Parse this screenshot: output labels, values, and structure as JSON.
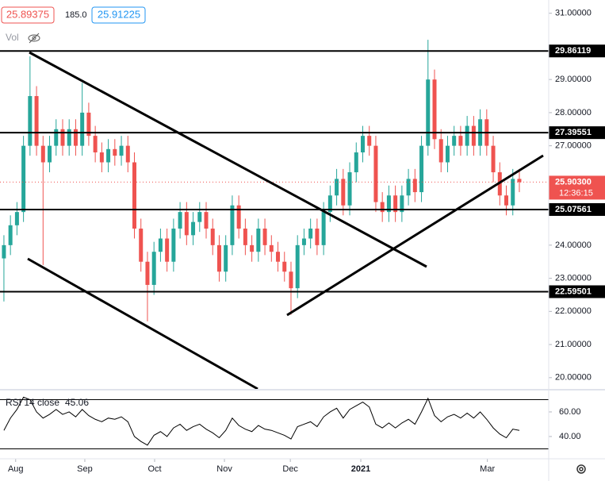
{
  "chart_data": {
    "type": "candlestick",
    "header": {
      "bid": "25.89375",
      "spread": "185.0",
      "ask": "25.91225",
      "volume_label": "Vol",
      "countdown": "12:36:15"
    },
    "xlim": [
      -0.6,
      83.5
    ],
    "xticks": [
      {
        "value": 1.8,
        "label": "Aug"
      },
      {
        "value": 12.4,
        "label": "Sep"
      },
      {
        "value": 23.1,
        "label": "Oct"
      },
      {
        "value": 33.8,
        "label": "Nov"
      },
      {
        "value": 43.9,
        "label": "Dec"
      },
      {
        "value": 54.7,
        "label": "2021"
      },
      {
        "value": 74.1,
        "label": "Mar"
      }
    ],
    "ylim": [
      19.66,
      31.4
    ],
    "yticks": [
      {
        "value": 31,
        "label": "31.00000"
      },
      {
        "value": 29,
        "label": "29.00000"
      },
      {
        "value": 28,
        "label": "28.00000"
      },
      {
        "value": 27,
        "label": "27.00000"
      },
      {
        "value": 24,
        "label": "24.00000"
      },
      {
        "value": 23,
        "label": "23.00000"
      },
      {
        "value": 22,
        "label": "22.00000"
      },
      {
        "value": 21,
        "label": "21.00000"
      },
      {
        "value": 20,
        "label": "20.00000"
      }
    ],
    "up_color": "#26a69a",
    "down_color": "#ef5350",
    "open": [
      23.6,
      24,
      24.6,
      25,
      27,
      28.5,
      27,
      26.5,
      27,
      27.5,
      27,
      27.5,
      27,
      28,
      27.3,
      26.8,
      26.5,
      26.9,
      26.7,
      27,
      26.5,
      24.5,
      23.5,
      22.8,
      23.8,
      24.2,
      23.5,
      24.5,
      25,
      24.3,
      24.7,
      25,
      24.5,
      24,
      23.2,
      24,
      25.2,
      24.5,
      24,
      23.8,
      24.5,
      24,
      23.8,
      23.5,
      23.2,
      22.7,
      24,
      24.2,
      24.5,
      24,
      25,
      25.5,
      26,
      25.2,
      26.2,
      26.8,
      27.3,
      27,
      25.3,
      25,
      25.5,
      25,
      25.5,
      26,
      25.6,
      27,
      29,
      27.2,
      26.5,
      27,
      27.3,
      27,
      27.6,
      27,
      27.8,
      27,
      26.2,
      25.5,
      25.2,
      26
    ],
    "high": [
      24.3,
      24.9,
      25.3,
      27.3,
      29.7,
      28.8,
      27.3,
      27.3,
      27.8,
      27.8,
      27.8,
      27.8,
      28.9,
      28.3,
      27.6,
      27.1,
      27.2,
      27.2,
      27.3,
      27.3,
      26.8,
      24.8,
      23.8,
      24.1,
      24.5,
      24.5,
      24.8,
      25.3,
      25.3,
      25,
      25.3,
      25.3,
      24.8,
      24.3,
      24.3,
      25.5,
      25.5,
      24.8,
      24.3,
      24.8,
      24.8,
      24.3,
      24.1,
      23.8,
      23.5,
      24.3,
      24.5,
      24.8,
      24.8,
      25.3,
      25.8,
      26.3,
      26.3,
      26.5,
      27.1,
      27.6,
      27.6,
      27.3,
      25.6,
      25.8,
      25.8,
      25.8,
      26.3,
      26.3,
      27.3,
      30.2,
      29.3,
      27.5,
      27.3,
      27.6,
      27.6,
      27.9,
      27.9,
      28.1,
      28.1,
      27.3,
      26.5,
      25.8,
      26.3,
      26.3
    ],
    "low": [
      22.3,
      23.7,
      24.3,
      24.7,
      26.7,
      26.7,
      23.4,
      26.2,
      26.7,
      26.7,
      26.7,
      26.7,
      26.7,
      27,
      26.5,
      26.2,
      26.2,
      26.4,
      26.4,
      26.2,
      24.2,
      23.2,
      21.7,
      22.5,
      23.5,
      23.2,
      23.2,
      24.2,
      24,
      24,
      24.4,
      24.2,
      23.7,
      22.9,
      22.9,
      23.7,
      24.2,
      23.7,
      23.5,
      23.5,
      23.7,
      23.5,
      23.2,
      22.9,
      21.9,
      22.4,
      23.7,
      23.9,
      23.7,
      23.7,
      24.7,
      25.2,
      24.9,
      24.9,
      25.9,
      26.5,
      26.7,
      25,
      24.7,
      24.7,
      24.7,
      24.7,
      25.2,
      25.3,
      25.3,
      26.7,
      26.9,
      26.2,
      26.2,
      26.7,
      26.7,
      26.7,
      26.7,
      26.7,
      26.7,
      25.9,
      25.2,
      24.9,
      24.9,
      25.6
    ],
    "close": [
      24,
      24.6,
      25,
      27,
      28.5,
      27,
      26.5,
      27,
      27.5,
      27,
      27.5,
      27,
      28,
      27.3,
      26.8,
      26.5,
      26.9,
      26.7,
      27,
      26.5,
      24.5,
      23.5,
      22.8,
      23.8,
      24.2,
      23.5,
      24.5,
      25,
      24.3,
      24.7,
      25,
      24.5,
      24,
      23.2,
      24,
      25.2,
      24.5,
      24,
      23.8,
      24.5,
      24,
      23.8,
      23.5,
      23.2,
      22.7,
      24,
      24.2,
      24.5,
      24,
      25,
      25.5,
      26,
      25.2,
      26.2,
      26.8,
      27.3,
      27,
      25.3,
      25,
      25.5,
      25,
      25.5,
      26,
      25.6,
      27,
      29,
      27.2,
      26.5,
      27,
      27.3,
      27,
      27.6,
      27,
      27.8,
      27,
      26.2,
      25.5,
      25.2,
      26,
      25.9
    ],
    "levels": [
      29.86119,
      27.39551,
      25.07561,
      22.59501
    ],
    "last_price": {
      "value": 25.903,
      "label": "25.90300"
    },
    "rsi": {
      "title": "RSI 14 close",
      "last": "45.06",
      "ylim": [
        21.9,
        77.4
      ],
      "yticks": [
        {
          "value": 60,
          "label": "60.00"
        },
        {
          "value": 40,
          "label": "40.00"
        }
      ],
      "bands": [
        70,
        30
      ],
      "values": [
        45,
        55,
        62,
        72,
        70,
        60,
        55,
        58,
        62,
        58,
        60,
        56,
        62,
        57,
        54,
        52,
        55,
        54,
        56,
        52,
        40,
        36,
        33,
        41,
        44,
        40,
        47,
        50,
        45,
        48,
        50,
        46,
        43,
        39,
        45,
        55,
        49,
        46,
        44,
        49,
        46,
        45,
        43,
        41,
        38,
        48,
        50,
        52,
        48,
        56,
        60,
        63,
        55,
        62,
        65,
        68,
        64,
        50,
        47,
        51,
        47,
        51,
        54,
        50,
        60,
        71,
        57,
        52,
        56,
        58,
        55,
        59,
        55,
        60,
        54,
        47,
        42,
        39,
        46,
        45
      ]
    }
  }
}
